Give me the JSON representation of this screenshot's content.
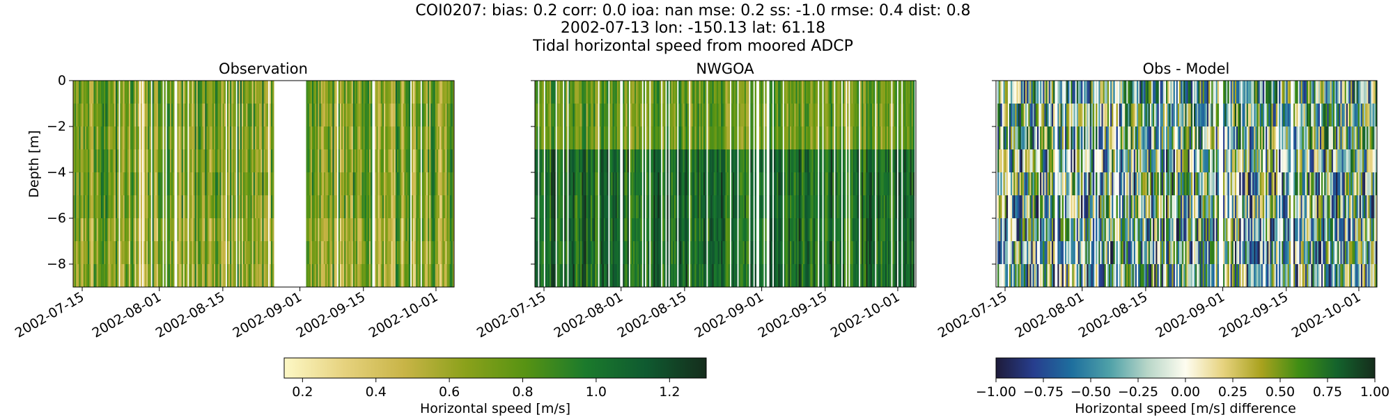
{
  "figure": {
    "title_lines": [
      "COI0207: bias: 0.2  corr: 0.0  ioa: nan  mse: 0.2  ss: -1.0  rmse: 0.4  dist: 0.8",
      "2002-07-13 lon: -150.13 lat: 61.18",
      "Tidal horizontal speed from moored ADCP"
    ]
  },
  "chart_data": [
    {
      "type": "heatmap",
      "title": "Observation",
      "xlabel": "",
      "ylabel": "Depth [m]",
      "x_range": [
        "2002-07-13",
        "2002-10-05"
      ],
      "ylim": [
        -9,
        0
      ],
      "yticks": [
        0,
        -2,
        -4,
        -6,
        -8
      ],
      "xticks": [
        "2002-07-15",
        "2002-08-01",
        "2002-08-15",
        "2002-09-01",
        "2002-09-15",
        "2002-10-01"
      ],
      "gap": [
        "2002-08-26",
        "2002-09-02"
      ],
      "colormap": "speed",
      "vmin": 0.15,
      "vmax": 1.3
    },
    {
      "type": "heatmap",
      "title": "NWGOA",
      "xlabel": "",
      "ylabel": "",
      "x_range": [
        "2002-07-13",
        "2002-10-05"
      ],
      "ylim": [
        -9,
        0
      ],
      "yticks": [
        0,
        -2,
        -4,
        -6,
        -8
      ],
      "xticks": [
        "2002-07-15",
        "2002-08-01",
        "2002-08-15",
        "2002-09-01",
        "2002-09-15",
        "2002-10-01"
      ],
      "colormap": "speed",
      "vmin": 0.15,
      "vmax": 1.3
    },
    {
      "type": "heatmap",
      "title": "Obs - Model",
      "xlabel": "",
      "ylabel": "",
      "x_range": [
        "2002-07-13",
        "2002-10-05"
      ],
      "ylim": [
        -9,
        0
      ],
      "yticks": [
        0,
        -2,
        -4,
        -6,
        -8
      ],
      "xticks": [
        "2002-07-15",
        "2002-08-01",
        "2002-08-15",
        "2002-09-01",
        "2002-09-15",
        "2002-10-01"
      ],
      "gap": [
        "2002-08-31",
        "2002-09-01"
      ],
      "colormap": "diff",
      "vmin": -1,
      "vmax": 1
    }
  ],
  "colorbars": [
    {
      "label": "Horizontal speed [m/s]",
      "min": 0.15,
      "max": 1.3,
      "ticks": [
        "0.2",
        "0.4",
        "0.6",
        "0.8",
        "1.0",
        "1.2"
      ],
      "colors": [
        "#fdf8c6",
        "#e6d27e",
        "#c8b446",
        "#8ba11b",
        "#579313",
        "#1b7a2c",
        "#0f5a30",
        "#152d1c"
      ]
    },
    {
      "label": "Horizontal speed [m/s] difference",
      "min": -1,
      "max": 1,
      "ticks": [
        "−1.00",
        "−0.75",
        "−0.50",
        "−0.25",
        "0.00",
        "0.25",
        "0.50",
        "0.75",
        "1.00"
      ],
      "colors": [
        "#1e1b3a",
        "#273e8e",
        "#1e6f9e",
        "#4fa1a8",
        "#b8d6c8",
        "#fefdf0",
        "#e6d27e",
        "#a9a21e",
        "#3f8d14",
        "#14632c",
        "#152d1c"
      ]
    }
  ]
}
